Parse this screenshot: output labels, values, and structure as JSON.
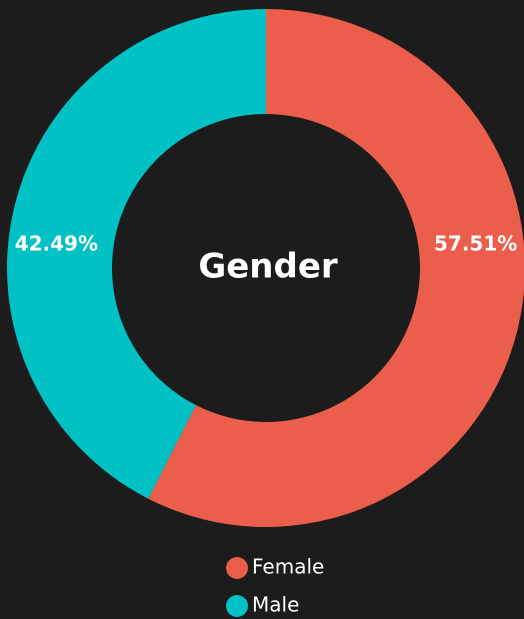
{
  "chart_data": {
    "type": "donut",
    "title": "Gender",
    "categories": [
      "Female",
      "Male"
    ],
    "values": [
      57.51,
      42.49
    ],
    "value_labels": [
      "57.51%",
      "42.49%"
    ],
    "colors": [
      "#ec5e4c",
      "#00c2c4"
    ]
  }
}
